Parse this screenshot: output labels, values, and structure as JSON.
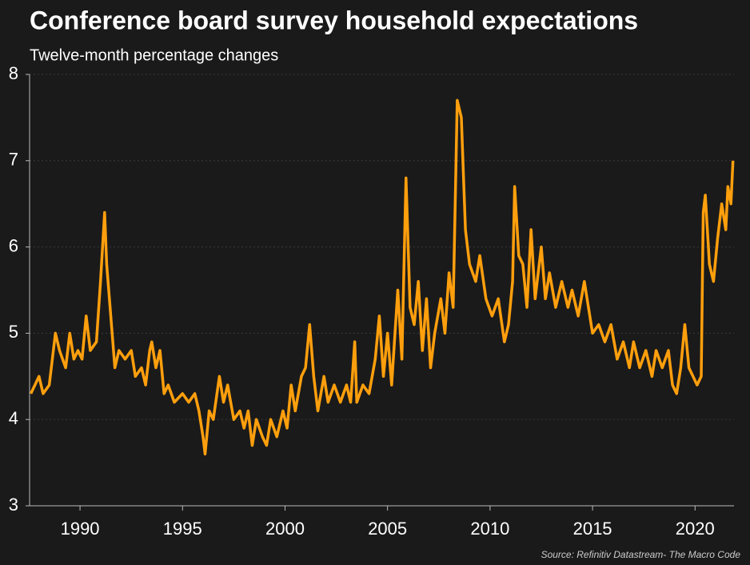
{
  "chart_data": {
    "type": "line",
    "title": "Conference board survey household expectations",
    "subtitle": "Twelve-month percentage changes",
    "source": "Source: Refinitiv Datastream- The Macro Code",
    "color": "#ff9f0d",
    "grid": true,
    "xlim": [
      1987.54,
      2021.9
    ],
    "xticks": [
      1990,
      1995,
      2000,
      2005,
      2010,
      2015,
      2020
    ],
    "ylim": [
      3,
      8
    ],
    "yticks": [
      3,
      4,
      5,
      6,
      7,
      8
    ],
    "x": [
      1987.6,
      1987.8,
      1988.0,
      1988.2,
      1988.5,
      1988.8,
      1989.0,
      1989.3,
      1989.5,
      1989.7,
      1989.9,
      1990.1,
      1990.3,
      1990.5,
      1990.8,
      1991.0,
      1991.2,
      1991.3,
      1991.5,
      1991.7,
      1991.9,
      1992.2,
      1992.5,
      1992.7,
      1993.0,
      1993.2,
      1993.4,
      1993.5,
      1993.7,
      1993.9,
      1994.1,
      1994.3,
      1994.6,
      1995.0,
      1995.3,
      1995.6,
      1995.8,
      1996.0,
      1996.1,
      1996.3,
      1996.5,
      1996.8,
      1997.0,
      1997.2,
      1997.5,
      1997.8,
      1998.0,
      1998.2,
      1998.4,
      1998.6,
      1998.9,
      1999.1,
      1999.3,
      1999.6,
      1999.9,
      2000.1,
      2000.3,
      2000.5,
      2000.8,
      2001.0,
      2001.2,
      2001.4,
      2001.6,
      2001.9,
      2002.1,
      2002.4,
      2002.7,
      2003.0,
      2003.2,
      2003.4,
      2003.5,
      2003.8,
      2004.1,
      2004.4,
      2004.6,
      2004.8,
      2005.0,
      2005.2,
      2005.5,
      2005.7,
      2005.9,
      2006.1,
      2006.3,
      2006.5,
      2006.7,
      2006.9,
      2007.1,
      2007.3,
      2007.6,
      2007.8,
      2008.0,
      2008.2,
      2008.4,
      2008.6,
      2008.8,
      2009.0,
      2009.3,
      2009.5,
      2009.8,
      2010.1,
      2010.4,
      2010.7,
      2010.9,
      2011.1,
      2011.2,
      2011.4,
      2011.6,
      2011.8,
      2012.0,
      2012.2,
      2012.5,
      2012.7,
      2012.9,
      2013.2,
      2013.5,
      2013.8,
      2014.0,
      2014.3,
      2014.6,
      2014.8,
      2015.0,
      2015.3,
      2015.6,
      2015.9,
      2016.2,
      2016.5,
      2016.8,
      2017.0,
      2017.3,
      2017.6,
      2017.9,
      2018.1,
      2018.4,
      2018.7,
      2018.9,
      2019.1,
      2019.3,
      2019.5,
      2019.7,
      2019.9,
      2020.1,
      2020.3,
      2020.4,
      2020.5,
      2020.7,
      2020.9,
      2021.1,
      2021.3,
      2021.5,
      2021.6,
      2021.75,
      2021.85
    ],
    "series": [
      {
        "name": "Household expectations",
        "color": "#ff9f0d",
        "values": [
          4.3,
          4.4,
          4.5,
          4.3,
          4.4,
          5.0,
          4.8,
          4.6,
          5.0,
          4.7,
          4.8,
          4.7,
          5.2,
          4.8,
          4.9,
          5.6,
          6.4,
          5.8,
          5.2,
          4.6,
          4.8,
          4.7,
          4.8,
          4.5,
          4.6,
          4.4,
          4.8,
          4.9,
          4.6,
          4.8,
          4.3,
          4.4,
          4.2,
          4.3,
          4.2,
          4.3,
          4.1,
          3.8,
          3.6,
          4.1,
          4.0,
          4.5,
          4.2,
          4.4,
          4.0,
          4.1,
          3.9,
          4.1,
          3.7,
          4.0,
          3.8,
          3.7,
          4.0,
          3.8,
          4.1,
          3.9,
          4.4,
          4.1,
          4.5,
          4.6,
          5.1,
          4.5,
          4.1,
          4.5,
          4.2,
          4.4,
          4.2,
          4.4,
          4.2,
          4.9,
          4.2,
          4.4,
          4.3,
          4.7,
          5.2,
          4.5,
          5.0,
          4.4,
          5.5,
          4.7,
          6.8,
          5.3,
          5.1,
          5.6,
          4.8,
          5.4,
          4.6,
          5.0,
          5.4,
          5.0,
          5.7,
          5.3,
          7.7,
          7.5,
          6.2,
          5.8,
          5.6,
          5.9,
          5.4,
          5.2,
          5.4,
          4.9,
          5.1,
          5.6,
          6.7,
          5.9,
          5.8,
          5.3,
          6.2,
          5.4,
          6.0,
          5.4,
          5.7,
          5.3,
          5.6,
          5.3,
          5.5,
          5.2,
          5.6,
          5.3,
          5.0,
          5.1,
          4.9,
          5.1,
          4.7,
          4.9,
          4.6,
          4.9,
          4.6,
          4.8,
          4.5,
          4.8,
          4.6,
          4.8,
          4.4,
          4.3,
          4.6,
          5.1,
          4.6,
          4.5,
          4.4,
          4.5,
          6.4,
          6.6,
          5.8,
          5.6,
          6.1,
          6.5,
          6.2,
          6.7,
          6.5,
          7.0
        ]
      }
    ]
  }
}
